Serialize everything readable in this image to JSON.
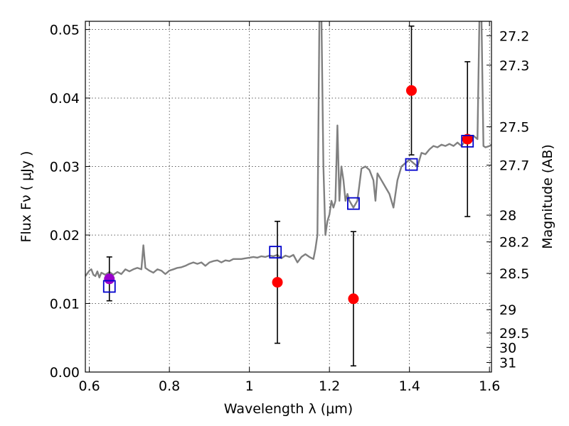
{
  "chart_data": {
    "type": "scatter",
    "xlabel": "Wavelength  λ (μm)",
    "ylabel": "Flux  Fν  ( μJy )",
    "y2label": "Magnitude (AB)",
    "xlim": [
      0.59,
      1.605
    ],
    "ylim": [
      0.0,
      0.0512
    ],
    "grid": true,
    "x_ticks": [
      {
        "value": 0.6,
        "label": "0.6"
      },
      {
        "value": 0.8,
        "label": "0.8"
      },
      {
        "value": 1.0,
        "label": "1"
      },
      {
        "value": 1.2,
        "label": "1.2"
      },
      {
        "value": 1.4,
        "label": "1.4"
      },
      {
        "value": 1.6,
        "label": "1.6"
      }
    ],
    "y_ticks": [
      {
        "value": 0.0,
        "label": "0.00"
      },
      {
        "value": 0.01,
        "label": "0.01"
      },
      {
        "value": 0.02,
        "label": "0.02"
      },
      {
        "value": 0.03,
        "label": "0.03"
      },
      {
        "value": 0.04,
        "label": "0.04"
      },
      {
        "value": 0.05,
        "label": "0.05"
      }
    ],
    "y2_ticks": [
      {
        "flux": 0.0491,
        "label": "27.2"
      },
      {
        "flux": 0.0448,
        "label": "27.3"
      },
      {
        "flux": 0.0358,
        "label": "27.5"
      },
      {
        "flux": 0.0302,
        "label": "27.7"
      },
      {
        "flux": 0.0229,
        "label": "28"
      },
      {
        "flux": 0.019,
        "label": "28.2"
      },
      {
        "flux": 0.0144,
        "label": "28.5"
      },
      {
        "flux": 0.0091,
        "label": "29"
      },
      {
        "flux": 0.0057,
        "label": "29.5"
      },
      {
        "flux": 0.0036,
        "label": "30"
      },
      {
        "flux": 0.0014,
        "label": "31"
      }
    ],
    "series": [
      {
        "kind": "line",
        "color": "#808080",
        "x": [
          0.59,
          0.6,
          0.605,
          0.61,
          0.615,
          0.62,
          0.625,
          0.63,
          0.64,
          0.65,
          0.66,
          0.67,
          0.68,
          0.69,
          0.7,
          0.71,
          0.72,
          0.73,
          0.735,
          0.74,
          0.75,
          0.76,
          0.77,
          0.78,
          0.79,
          0.8,
          0.81,
          0.82,
          0.83,
          0.84,
          0.85,
          0.86,
          0.87,
          0.88,
          0.89,
          0.9,
          0.91,
          0.92,
          0.93,
          0.94,
          0.95,
          0.96,
          0.97,
          0.98,
          0.99,
          1.0,
          1.01,
          1.02,
          1.03,
          1.04,
          1.05,
          1.06,
          1.07,
          1.08,
          1.09,
          1.1,
          1.11,
          1.12,
          1.13,
          1.14,
          1.15,
          1.16,
          1.165,
          1.17,
          1.175,
          1.18,
          1.185,
          1.19,
          1.195,
          1.2,
          1.205,
          1.21,
          1.215,
          1.22,
          1.225,
          1.23,
          1.235,
          1.24,
          1.245,
          1.25,
          1.26,
          1.27,
          1.28,
          1.29,
          1.3,
          1.31,
          1.315,
          1.32,
          1.33,
          1.34,
          1.35,
          1.36,
          1.37,
          1.38,
          1.39,
          1.4,
          1.41,
          1.42,
          1.43,
          1.44,
          1.45,
          1.46,
          1.47,
          1.48,
          1.49,
          1.5,
          1.51,
          1.52,
          1.53,
          1.54,
          1.55,
          1.56,
          1.57,
          1.575,
          1.58,
          1.585,
          1.59,
          1.6,
          1.605
        ],
        "y": [
          0.014,
          0.0148,
          0.015,
          0.0142,
          0.014,
          0.0147,
          0.0138,
          0.0145,
          0.0142,
          0.0146,
          0.0142,
          0.0146,
          0.0143,
          0.015,
          0.0147,
          0.015,
          0.0152,
          0.015,
          0.0185,
          0.0152,
          0.0148,
          0.0145,
          0.015,
          0.0148,
          0.0143,
          0.0148,
          0.015,
          0.0152,
          0.0153,
          0.0155,
          0.0158,
          0.016,
          0.0158,
          0.016,
          0.0155,
          0.016,
          0.0162,
          0.0163,
          0.016,
          0.0163,
          0.0162,
          0.0165,
          0.0165,
          0.0165,
          0.0166,
          0.0167,
          0.0168,
          0.0167,
          0.0169,
          0.0168,
          0.017,
          0.0169,
          0.0171,
          0.0166,
          0.017,
          0.0168,
          0.0171,
          0.016,
          0.0168,
          0.0172,
          0.0168,
          0.0165,
          0.018,
          0.02,
          0.052,
          0.052,
          0.03,
          0.02,
          0.022,
          0.023,
          0.025,
          0.024,
          0.025,
          0.036,
          0.025,
          0.03,
          0.028,
          0.025,
          0.026,
          0.025,
          0.024,
          0.025,
          0.0297,
          0.03,
          0.0295,
          0.028,
          0.025,
          0.029,
          0.028,
          0.027,
          0.026,
          0.024,
          0.028,
          0.03,
          0.0305,
          0.031,
          0.0305,
          0.03,
          0.032,
          0.0318,
          0.0325,
          0.033,
          0.0328,
          0.0332,
          0.033,
          0.0333,
          0.033,
          0.0335,
          0.033,
          0.0338,
          0.0335,
          0.0345,
          0.034,
          0.052,
          0.052,
          0.033,
          0.0328,
          0.033,
          0.0332
        ]
      },
      {
        "kind": "points",
        "marker": "circle",
        "color": "#ff0000",
        "x": [
          0.65,
          1.07,
          1.26,
          1.405,
          1.545
        ],
        "y": [
          0.0136,
          0.0131,
          0.0107,
          0.0411,
          0.034
        ],
        "yerr": [
          0.0032,
          0.0089,
          0.0098,
          0.0094,
          0.0113
        ],
        "highlight": [
          true,
          false,
          false,
          false,
          false
        ],
        "highlight_color": "#9900cc"
      },
      {
        "kind": "points",
        "marker": "square",
        "color": "#0000cc",
        "x": [
          0.65,
          1.065,
          1.26,
          1.405,
          1.545
        ],
        "y": [
          0.0125,
          0.0175,
          0.0246,
          0.0303,
          0.0337
        ]
      }
    ]
  }
}
